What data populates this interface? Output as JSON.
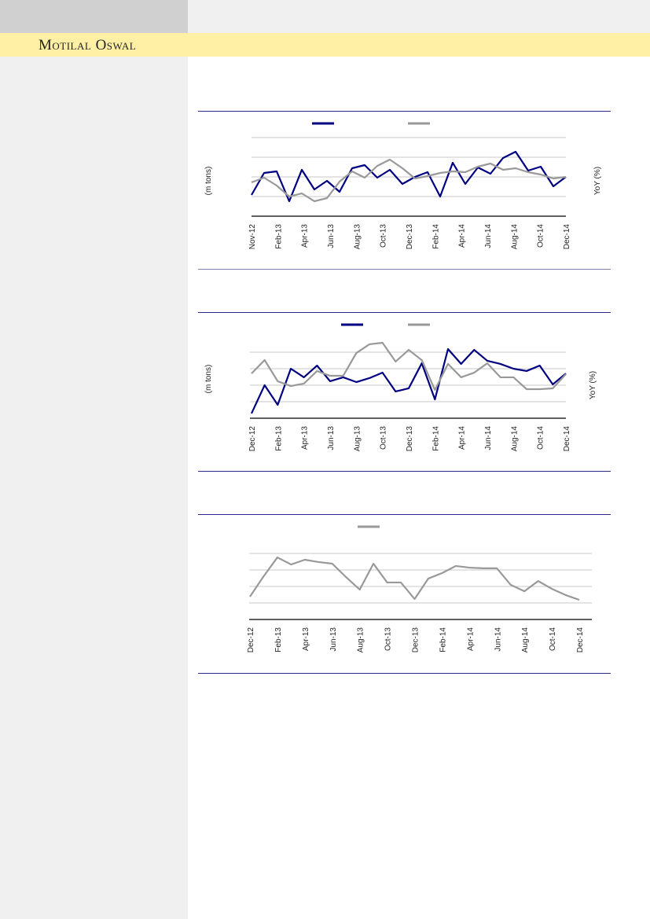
{
  "header": {
    "brand": "Motilal Oswal"
  },
  "colors": {
    "navy": "#000080",
    "gray": "#999999",
    "rule": "#2a2a8a",
    "brand_bar": "#fff0a6"
  },
  "chart_data": [
    {
      "type": "line",
      "ylim": [
        0,
        4.2
      ],
      "grid": true,
      "legend": "top",
      "left_axis_label": "(m tons)",
      "right_axis_label": "YoY (%)",
      "tick_labels": [
        "Nov-12",
        "Feb-13",
        "Apr-13",
        "Jun-13",
        "Aug-13",
        "Oct-13",
        "Dec-13",
        "Feb-14",
        "Apr-14",
        "Jun-14",
        "Aug-14",
        "Oct-14",
        "Dec-14"
      ],
      "series": [
        {
          "color": "#000080",
          "values": [
            1.08,
            2.2,
            2.28,
            0.76,
            2.36,
            1.36,
            1.8,
            1.24,
            2.44,
            2.6,
            1.96,
            2.36,
            1.64,
            2.0,
            2.24,
            1.0,
            2.72,
            1.64,
            2.48,
            2.16,
            2.96,
            3.28,
            2.32,
            2.52,
            1.52,
            2.0
          ]
        },
        {
          "color": "#999999",
          "values": [
            1.72,
            1.96,
            1.56,
            1.0,
            1.16,
            0.76,
            0.92,
            1.76,
            2.28,
            1.96,
            2.56,
            2.88,
            2.44,
            1.92,
            2.04,
            2.2,
            2.28,
            2.24,
            2.52,
            2.68,
            2.36,
            2.44,
            2.24,
            2.12,
            1.92,
            2.0
          ]
        }
      ]
    },
    {
      "type": "line",
      "ylim": [
        0,
        5
      ],
      "grid": true,
      "legend": "top",
      "left_axis_label": "(m tons)",
      "right_axis_label": "YoY (%)",
      "tick_labels": [
        "Dec-12",
        "Feb-13",
        "Apr-13",
        "Jun-13",
        "Aug-13",
        "Oct-13",
        "Dec-13",
        "Feb-14",
        "Apr-14",
        "Jun-14",
        "Aug-14",
        "Oct-14",
        "Dec-14"
      ],
      "series": [
        {
          "color": "#000080",
          "values": [
            0.29,
            2.0,
            0.81,
            3.0,
            2.48,
            3.19,
            2.24,
            2.48,
            2.19,
            2.43,
            2.76,
            1.62,
            1.81,
            3.33,
            1.14,
            4.19,
            3.29,
            4.14,
            3.48,
            3.29,
            3.0,
            2.86,
            3.19,
            2.05,
            2.71
          ]
        },
        {
          "color": "#999999",
          "values": [
            2.71,
            3.52,
            2.24,
            1.95,
            2.1,
            2.86,
            2.57,
            2.57,
            3.95,
            4.48,
            4.57,
            3.43,
            4.14,
            3.52,
            1.71,
            3.29,
            2.48,
            2.76,
            3.33,
            2.48,
            2.48,
            1.76,
            1.76,
            1.81,
            2.67
          ]
        }
      ]
    },
    {
      "type": "line",
      "ylim": [
        0,
        5
      ],
      "grid": true,
      "legend": "top",
      "tick_labels": [
        "Dec-12",
        "Feb-13",
        "Apr-13",
        "Jun-13",
        "Aug-13",
        "Oct-13",
        "Dec-13",
        "Feb-14",
        "Apr-14",
        "Jun-14",
        "Aug-14",
        "Oct-14",
        "Dec-14"
      ],
      "series": [
        {
          "color": "#999999",
          "values": [
            1.38,
            2.62,
            3.76,
            3.33,
            3.62,
            3.48,
            3.38,
            2.57,
            1.81,
            3.38,
            2.24,
            2.24,
            1.24,
            2.48,
            2.81,
            3.24,
            3.14,
            3.1,
            3.1,
            2.1,
            1.71,
            2.33,
            1.86,
            1.48,
            1.19
          ]
        }
      ]
    }
  ]
}
